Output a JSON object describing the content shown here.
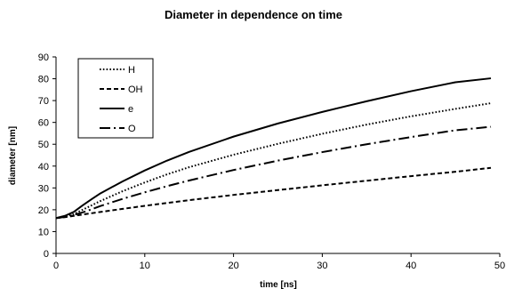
{
  "chart_data": {
    "type": "line",
    "title": "Diameter in dependence on time",
    "xlabel": "time [ns]",
    "ylabel": "diameter [nm]",
    "xlim": [
      0,
      50
    ],
    "ylim": [
      0,
      90
    ],
    "xticks": [
      0,
      10,
      20,
      30,
      40,
      50
    ],
    "yticks": [
      0,
      10,
      20,
      30,
      40,
      50,
      60,
      70,
      80,
      90
    ],
    "grid": false,
    "legend_position": "top-left",
    "x": [
      0,
      1,
      2,
      3,
      4,
      5,
      7.5,
      10,
      12.5,
      15,
      20,
      25,
      30,
      35,
      40,
      45,
      49
    ],
    "series": [
      {
        "name": "H",
        "line_style": "dotted",
        "values": [
          16.2,
          16.8,
          18.0,
          20.0,
          22.0,
          24.0,
          28.5,
          32.5,
          36.2,
          39.5,
          45.2,
          50.2,
          54.8,
          59.0,
          62.8,
          66.2,
          68.8
        ]
      },
      {
        "name": "OH",
        "line_style": "dashed",
        "values": [
          16.2,
          16.6,
          17.2,
          17.8,
          18.4,
          19.0,
          20.4,
          21.8,
          23.1,
          24.4,
          26.8,
          29.0,
          31.2,
          33.3,
          35.4,
          37.4,
          39.2
        ]
      },
      {
        "name": "e",
        "line_style": "solid",
        "values": [
          16.2,
          17.2,
          19.0,
          22.0,
          24.8,
          27.5,
          33.0,
          38.0,
          42.5,
          46.5,
          53.5,
          59.5,
          64.8,
          69.7,
          74.3,
          78.4,
          80.2
        ]
      },
      {
        "name": "O",
        "line_style": "dash-dot",
        "values": [
          16.2,
          16.7,
          17.6,
          18.8,
          20.2,
          21.7,
          25.0,
          28.0,
          30.8,
          33.4,
          38.2,
          42.5,
          46.4,
          50.0,
          53.3,
          56.4,
          58.0
        ]
      }
    ]
  }
}
